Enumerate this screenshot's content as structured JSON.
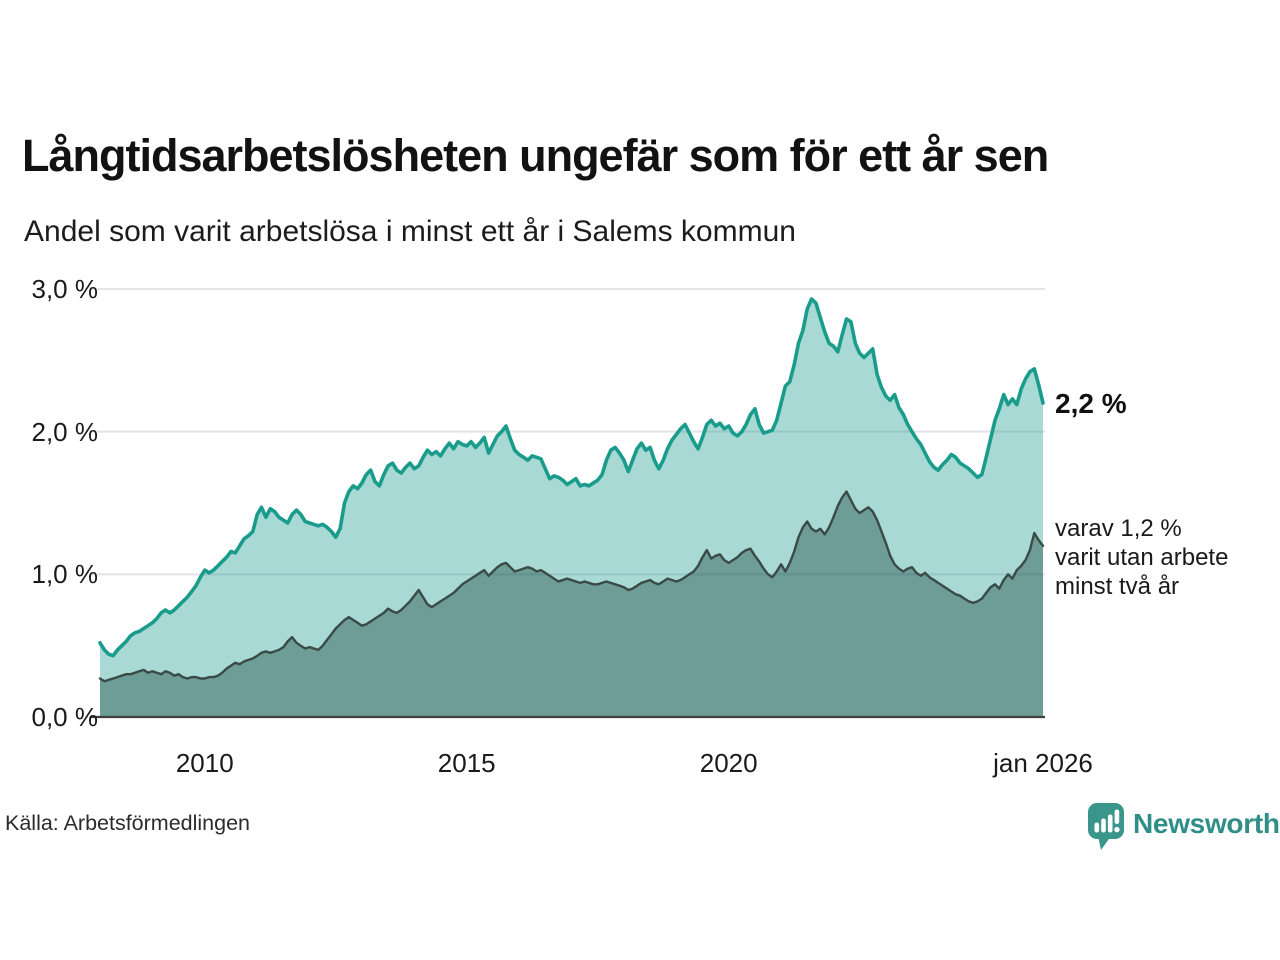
{
  "annotations": {
    "latest_label": "2,2 %",
    "note_lines": [
      "varav 1,2 %",
      "varit utan arbete",
      "minst två år"
    ]
  },
  "footer": {
    "source": "Källa: Arbetsförmedlingen",
    "brand": "Newsworthy"
  },
  "colors": {
    "series_total_line": "#1a9c8d",
    "series_total_fill_flat": "#a8d6cf",
    "series_two_line": "#3a4a46",
    "series_two_fill_flat": "#6f9b94",
    "grid": "#e3e3e8",
    "axis": "#3f3f3f",
    "title_text": "#121212",
    "brand_teal": "#2f8f86"
  },
  "chart_data": {
    "type": "area",
    "title": "Långtidsarbetslösheten ungefär som för ett år sen",
    "subtitle": "Andel som varit arbetslösa i minst ett år i Salems kommun",
    "x_unit": "decimal_year_monthly",
    "x_start": 2008.0,
    "x_step_years": 0.0833333,
    "x_range": [
      2008.0,
      2026.0
    ],
    "ylim": [
      0,
      3
    ],
    "grid": true,
    "legend_position": "right-annotations",
    "y_ticks": [
      {
        "value": 0,
        "label": "0,0 %"
      },
      {
        "value": 1,
        "label": "1,0 %"
      },
      {
        "value": 2,
        "label": "2,0 %"
      },
      {
        "value": 3,
        "label": "3,0 %"
      }
    ],
    "x_ticks": [
      {
        "value": 2010,
        "label": "2010"
      },
      {
        "value": 2015,
        "label": "2015"
      },
      {
        "value": 2020,
        "label": "2020"
      },
      {
        "value": 2026,
        "label": "jan 2026"
      }
    ],
    "series": [
      {
        "name": "Arbetslösa minst ett år",
        "end_value": 2.2,
        "end_label": "2,2 %",
        "line_color": "#1a9c8d",
        "fill_color": "rgba(26,156,141,0.38)",
        "values": [
          0.52,
          0.47,
          0.44,
          0.43,
          0.47,
          0.5,
          0.53,
          0.57,
          0.59,
          0.6,
          0.62,
          0.64,
          0.66,
          0.69,
          0.73,
          0.75,
          0.73,
          0.75,
          0.78,
          0.81,
          0.84,
          0.88,
          0.92,
          0.98,
          1.03,
          1.01,
          1.03,
          1.06,
          1.09,
          1.12,
          1.16,
          1.15,
          1.2,
          1.25,
          1.27,
          1.3,
          1.42,
          1.47,
          1.4,
          1.46,
          1.44,
          1.4,
          1.38,
          1.36,
          1.42,
          1.45,
          1.42,
          1.37,
          1.36,
          1.35,
          1.34,
          1.35,
          1.33,
          1.3,
          1.26,
          1.32,
          1.5,
          1.58,
          1.62,
          1.6,
          1.64,
          1.7,
          1.73,
          1.65,
          1.62,
          1.7,
          1.76,
          1.78,
          1.73,
          1.71,
          1.75,
          1.78,
          1.74,
          1.76,
          1.82,
          1.87,
          1.84,
          1.86,
          1.83,
          1.88,
          1.92,
          1.88,
          1.93,
          1.91,
          1.9,
          1.93,
          1.89,
          1.92,
          1.96,
          1.85,
          1.91,
          1.97,
          2.0,
          2.04,
          1.95,
          1.87,
          1.84,
          1.82,
          1.8,
          1.83,
          1.82,
          1.81,
          1.74,
          1.67,
          1.69,
          1.68,
          1.66,
          1.63,
          1.65,
          1.67,
          1.62,
          1.63,
          1.62,
          1.64,
          1.66,
          1.7,
          1.8,
          1.87,
          1.89,
          1.85,
          1.8,
          1.72,
          1.8,
          1.88,
          1.92,
          1.87,
          1.89,
          1.8,
          1.74,
          1.8,
          1.88,
          1.94,
          1.98,
          2.02,
          2.05,
          1.99,
          1.93,
          1.88,
          1.96,
          2.05,
          2.08,
          2.04,
          2.06,
          2.02,
          2.04,
          1.99,
          1.97,
          2.0,
          2.05,
          2.12,
          2.16,
          2.05,
          1.99,
          2.0,
          2.01,
          2.08,
          2.2,
          2.32,
          2.35,
          2.47,
          2.62,
          2.71,
          2.86,
          2.93,
          2.9,
          2.8,
          2.7,
          2.62,
          2.6,
          2.56,
          2.68,
          2.79,
          2.77,
          2.62,
          2.55,
          2.52,
          2.55,
          2.58,
          2.4,
          2.31,
          2.25,
          2.22,
          2.26,
          2.17,
          2.12,
          2.05,
          2.0,
          1.95,
          1.91,
          1.85,
          1.79,
          1.75,
          1.73,
          1.77,
          1.8,
          1.84,
          1.82,
          1.78,
          1.76,
          1.74,
          1.71,
          1.68,
          1.7,
          1.82,
          1.95,
          2.08,
          2.16,
          2.26,
          2.19,
          2.23,
          2.19,
          2.3,
          2.37,
          2.42,
          2.44,
          2.33,
          2.2
        ]
      },
      {
        "name": "Varav utan arbete minst två år",
        "end_value": 1.2,
        "end_label": "varav 1,2 % varit utan arbete minst två år",
        "line_color": "#3a4a46",
        "fill_color": "rgba(32,72,64,0.42)",
        "values": [
          0.27,
          0.25,
          0.26,
          0.27,
          0.28,
          0.29,
          0.3,
          0.3,
          0.31,
          0.32,
          0.33,
          0.31,
          0.32,
          0.31,
          0.3,
          0.32,
          0.31,
          0.29,
          0.3,
          0.28,
          0.27,
          0.28,
          0.28,
          0.27,
          0.27,
          0.28,
          0.28,
          0.29,
          0.31,
          0.34,
          0.36,
          0.38,
          0.37,
          0.39,
          0.4,
          0.41,
          0.43,
          0.45,
          0.46,
          0.45,
          0.46,
          0.47,
          0.49,
          0.53,
          0.56,
          0.52,
          0.5,
          0.48,
          0.49,
          0.48,
          0.47,
          0.5,
          0.54,
          0.58,
          0.62,
          0.65,
          0.68,
          0.7,
          0.68,
          0.66,
          0.64,
          0.65,
          0.67,
          0.69,
          0.71,
          0.73,
          0.76,
          0.74,
          0.73,
          0.75,
          0.78,
          0.81,
          0.85,
          0.89,
          0.84,
          0.79,
          0.77,
          0.79,
          0.81,
          0.83,
          0.85,
          0.87,
          0.9,
          0.93,
          0.95,
          0.97,
          0.99,
          1.01,
          1.03,
          0.99,
          1.02,
          1.05,
          1.07,
          1.08,
          1.05,
          1.02,
          1.03,
          1.04,
          1.05,
          1.04,
          1.02,
          1.03,
          1.01,
          0.99,
          0.97,
          0.95,
          0.96,
          0.97,
          0.96,
          0.95,
          0.94,
          0.95,
          0.94,
          0.93,
          0.93,
          0.94,
          0.95,
          0.94,
          0.93,
          0.92,
          0.91,
          0.89,
          0.9,
          0.92,
          0.94,
          0.95,
          0.96,
          0.94,
          0.93,
          0.95,
          0.97,
          0.96,
          0.95,
          0.96,
          0.98,
          1.0,
          1.02,
          1.06,
          1.12,
          1.17,
          1.11,
          1.13,
          1.14,
          1.1,
          1.08,
          1.1,
          1.12,
          1.15,
          1.17,
          1.18,
          1.13,
          1.09,
          1.04,
          1.0,
          0.98,
          1.02,
          1.07,
          1.02,
          1.08,
          1.16,
          1.26,
          1.33,
          1.37,
          1.32,
          1.3,
          1.32,
          1.28,
          1.33,
          1.4,
          1.48,
          1.54,
          1.58,
          1.52,
          1.46,
          1.43,
          1.45,
          1.47,
          1.44,
          1.38,
          1.3,
          1.22,
          1.13,
          1.07,
          1.04,
          1.02,
          1.04,
          1.05,
          1.01,
          0.99,
          1.01,
          0.98,
          0.96,
          0.94,
          0.92,
          0.9,
          0.88,
          0.86,
          0.85,
          0.83,
          0.81,
          0.8,
          0.81,
          0.83,
          0.87,
          0.91,
          0.93,
          0.9,
          0.96,
          1.0,
          0.97,
          1.03,
          1.06,
          1.1,
          1.17,
          1.29,
          1.24,
          1.2
        ]
      }
    ]
  }
}
